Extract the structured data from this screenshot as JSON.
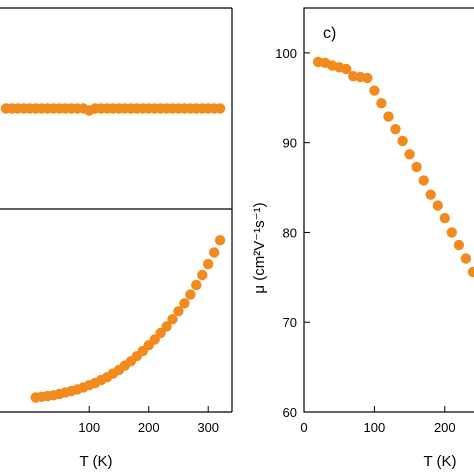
{
  "colors": {
    "marker": "#F28A1E",
    "axis": "#000000",
    "background": "#ffffff"
  },
  "chart_data": [
    {
      "type": "scatter",
      "panel": "top-left",
      "xlim": [
        -50,
        340
      ],
      "series": [
        {
          "x": [
            -40,
            -30,
            -20,
            -10,
            0,
            10,
            20,
            30,
            40,
            50,
            60,
            70,
            80,
            90,
            100,
            110,
            120,
            130,
            140,
            150,
            160,
            170,
            180,
            190,
            200,
            210,
            220,
            230,
            240,
            250,
            260,
            270,
            280,
            290,
            300,
            310,
            320
          ],
          "y": [
            0.5,
            0.5,
            0.5,
            0.5,
            0.5,
            0.5,
            0.5,
            0.5,
            0.5,
            0.5,
            0.5,
            0.5,
            0.5,
            0.5,
            0.49,
            0.5,
            0.5,
            0.5,
            0.5,
            0.5,
            0.5,
            0.5,
            0.5,
            0.5,
            0.5,
            0.5,
            0.5,
            0.5,
            0.5,
            0.5,
            0.5,
            0.5,
            0.5,
            0.5,
            0.5,
            0.5,
            0.5
          ]
        }
      ],
      "ylim": [
        0,
        1
      ]
    },
    {
      "type": "scatter",
      "panel": "bottom-left",
      "xlabel": "T (K)",
      "xticks": [
        "100",
        "200",
        "300"
      ],
      "xtick_values": [
        100,
        200,
        300
      ],
      "xlim": [
        -50,
        340
      ],
      "series": [
        {
          "x": [
            10,
            20,
            30,
            40,
            50,
            60,
            70,
            80,
            90,
            100,
            110,
            120,
            130,
            140,
            150,
            160,
            170,
            180,
            190,
            200,
            210,
            220,
            230,
            240,
            250,
            260,
            270,
            280,
            290,
            300,
            310,
            320
          ],
          "y": [
            0.0,
            0.01,
            0.02,
            0.03,
            0.05,
            0.07,
            0.09,
            0.11,
            0.14,
            0.17,
            0.2,
            0.24,
            0.28,
            0.33,
            0.38,
            0.44,
            0.5,
            0.57,
            0.64,
            0.72,
            0.8,
            0.89,
            0.98,
            1.08,
            1.19,
            1.3,
            1.42,
            1.55,
            1.69,
            1.84,
            2.0,
            2.17
          ]
        }
      ],
      "ylim": [
        -0.2,
        2.6
      ]
    },
    {
      "type": "scatter",
      "panel": "right",
      "panel_label": "c)",
      "xlabel": "T (K)",
      "ylabel": "μ (cm²V⁻¹s⁻¹)",
      "xlim": [
        0,
        250
      ],
      "ylim": [
        60,
        105
      ],
      "xticks": [
        "0",
        "100",
        "200"
      ],
      "xtick_values": [
        0,
        100,
        200
      ],
      "yticks": [
        "60",
        "70",
        "80",
        "90",
        "100"
      ],
      "ytick_values": [
        60,
        70,
        80,
        90,
        100
      ],
      "series": [
        {
          "x": [
            20,
            30,
            40,
            50,
            60,
            70,
            80,
            90,
            100,
            110,
            120,
            130,
            140,
            150,
            160,
            170,
            180,
            190,
            200,
            210,
            220,
            230,
            240
          ],
          "y": [
            99.0,
            98.9,
            98.6,
            98.4,
            98.2,
            97.4,
            97.3,
            97.2,
            95.8,
            94.4,
            92.9,
            91.5,
            90.2,
            88.7,
            87.3,
            85.8,
            84.2,
            83.0,
            81.6,
            80.0,
            78.6,
            77.1,
            75.6
          ]
        }
      ]
    }
  ]
}
